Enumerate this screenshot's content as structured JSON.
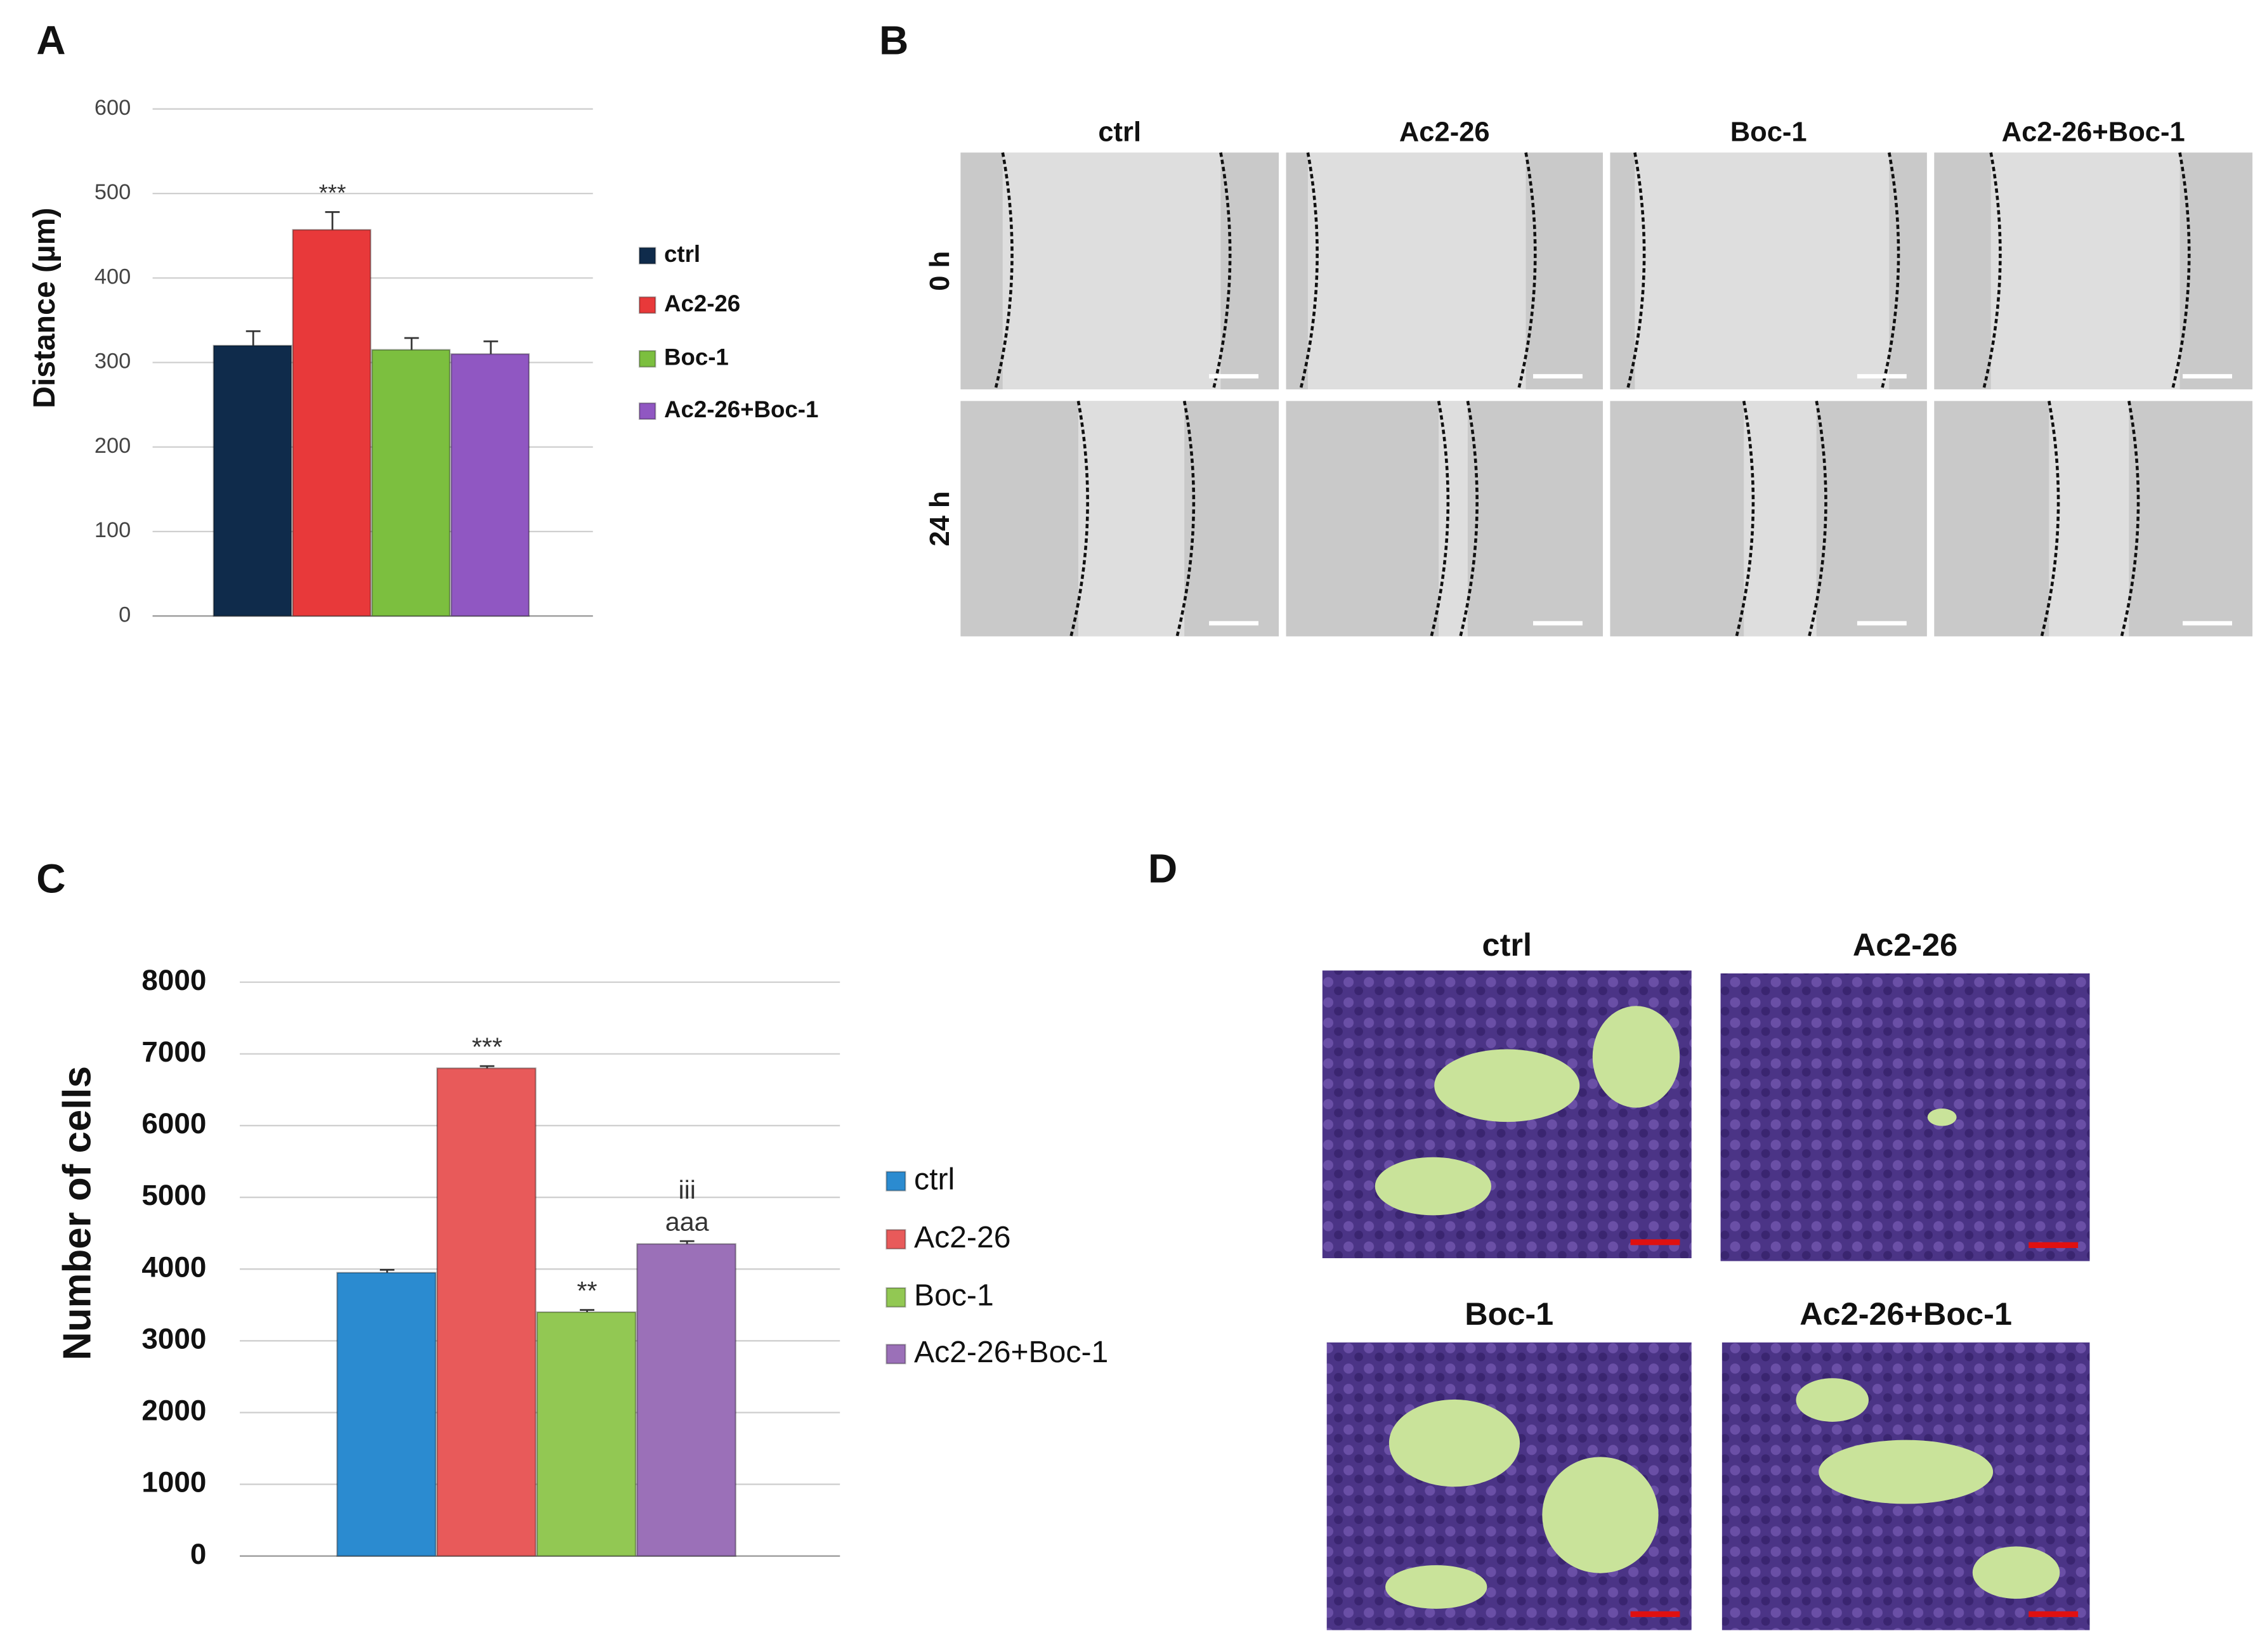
{
  "chart_data": [
    {
      "type": "bar",
      "panel_label": "A",
      "ylabel": "Distance (µm)",
      "ylim": [
        0,
        600
      ],
      "yticks": [
        0,
        100,
        200,
        300,
        400,
        500,
        600
      ],
      "grid": true,
      "legend": "right",
      "series": [
        {
          "name": "ctrl",
          "color": "#0f2b4b",
          "values": [
            320
          ],
          "errors": [
            17
          ]
        },
        {
          "name": "Ac2-26",
          "color": "#e8393a",
          "values": [
            457
          ],
          "errors": [
            21
          ],
          "annotation": [
            "***"
          ]
        },
        {
          "name": "Boc-1",
          "color": "#7cbf3f",
          "values": [
            315
          ],
          "errors": [
            14
          ]
        },
        {
          "name": "Ac2-26+Boc-1",
          "color": "#9057c2",
          "values": [
            310
          ],
          "errors": [
            15
          ]
        }
      ]
    },
    {
      "type": "bar",
      "panel_label": "C",
      "ylabel": "Number of cells",
      "ylim": [
        0,
        8000
      ],
      "yticks": [
        0,
        1000,
        2000,
        3000,
        4000,
        5000,
        6000,
        7000,
        8000
      ],
      "grid": true,
      "legend": "right",
      "series": [
        {
          "name": "ctrl",
          "color": "#2b8bd0",
          "values": [
            3950
          ],
          "errors": [
            40
          ]
        },
        {
          "name": "Ac2-26",
          "color": "#e85a5a",
          "values": [
            6800
          ],
          "errors": [
            30
          ],
          "annotation": [
            "***"
          ]
        },
        {
          "name": "Boc-1",
          "color": "#92c853",
          "values": [
            3400
          ],
          "errors": [
            30
          ],
          "annotation": [
            "**"
          ]
        },
        {
          "name": "Ac2-26+Boc-1",
          "color": "#9b70b8",
          "values": [
            4350
          ],
          "errors": [
            40
          ],
          "annotation": [
            "aaa",
            "iii"
          ]
        }
      ]
    }
  ],
  "images": {
    "B": {
      "panel_label": "B",
      "columns": [
        "ctrl",
        "Ac2-26",
        "Boc-1",
        "Ac2-26+Boc-1"
      ],
      "rows": [
        "0 h",
        "24 h"
      ]
    },
    "D": {
      "panel_label": "D",
      "columns": [
        "ctrl",
        "Ac2-26",
        "Boc-1",
        "Ac2-26+Boc-1"
      ]
    }
  }
}
